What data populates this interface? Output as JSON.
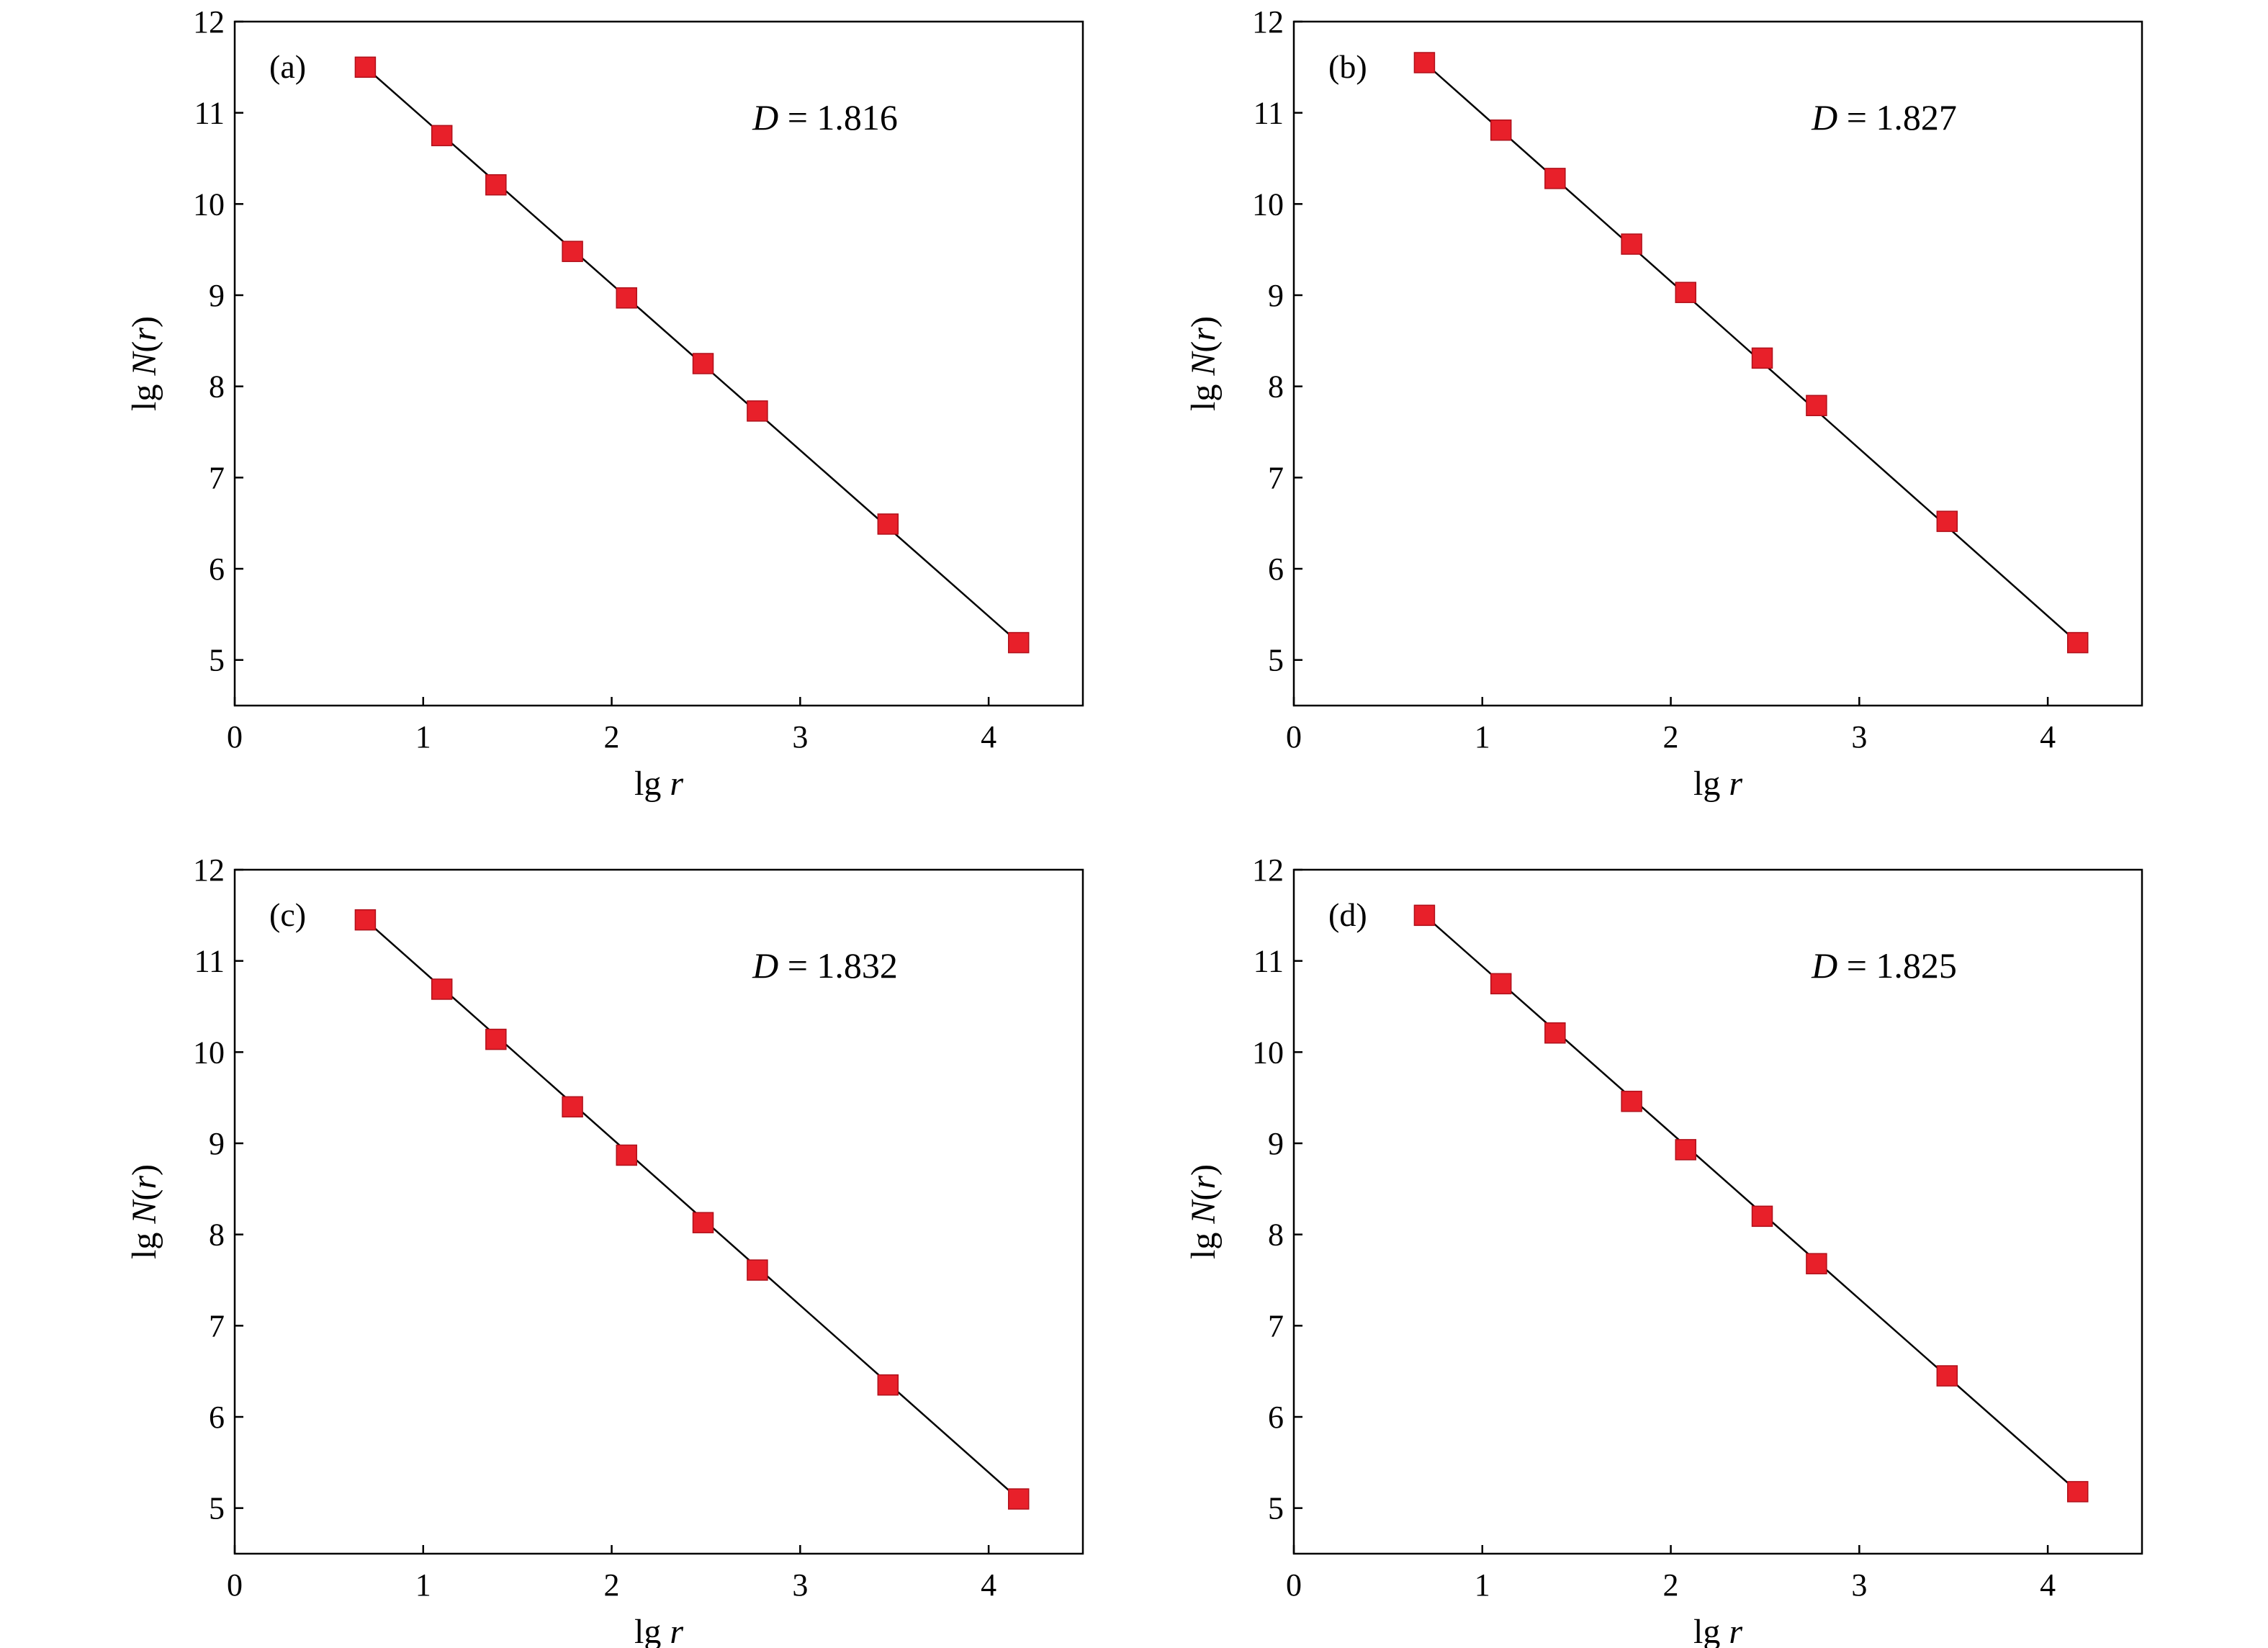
{
  "colors": {
    "marker": "#e8202a",
    "marker_edge": "#b0101a",
    "line": "#000000",
    "frame": "#000000"
  },
  "chart_data": [
    {
      "type": "scatter",
      "panel": "(a)",
      "xlabel": "lg r",
      "ylabel": "lg N(r)",
      "xlim": [
        0,
        4.5
      ],
      "ylim": [
        4.5,
        12
      ],
      "xticks": [
        "0",
        "1",
        "2",
        "3",
        "4"
      ],
      "yticks": [
        "5",
        "6",
        "7",
        "8",
        "9",
        "10",
        "11",
        "12"
      ],
      "grid": false,
      "annotation": {
        "symbol": "D",
        "text": " = 1.816"
      },
      "series": [
        {
          "x": [
            0.693,
            1.099,
            1.386,
            1.792,
            2.079,
            2.485,
            2.773,
            3.466,
            4.159
          ],
          "y": [
            11.5,
            10.75,
            10.21,
            9.48,
            8.97,
            8.25,
            7.73,
            6.49,
            5.19
          ]
        }
      ],
      "fit": {
        "x": [
          0.693,
          4.159
        ],
        "y": [
          11.5,
          5.19
        ]
      }
    },
    {
      "type": "scatter",
      "panel": "(b)",
      "xlabel": "lg r",
      "ylabel": "lg N(r)",
      "xlim": [
        0,
        4.5
      ],
      "ylim": [
        4.5,
        12
      ],
      "xticks": [
        "0",
        "1",
        "2",
        "3",
        "4"
      ],
      "yticks": [
        "5",
        "6",
        "7",
        "8",
        "9",
        "10",
        "11",
        "12"
      ],
      "grid": false,
      "annotation": {
        "symbol": "D",
        "text": " = 1.827"
      },
      "series": [
        {
          "x": [
            0.693,
            1.099,
            1.386,
            1.792,
            2.079,
            2.485,
            2.773,
            3.466,
            4.159
          ],
          "y": [
            11.55,
            10.81,
            10.28,
            9.56,
            9.03,
            8.31,
            7.79,
            6.52,
            5.19
          ]
        }
      ],
      "fit": {
        "x": [
          0.693,
          4.159
        ],
        "y": [
          11.55,
          5.19
        ]
      }
    },
    {
      "type": "scatter",
      "panel": "(c)",
      "xlabel": "lg r",
      "ylabel": "lg N(r)",
      "xlim": [
        0,
        4.5
      ],
      "ylim": [
        4.5,
        12
      ],
      "xticks": [
        "0",
        "1",
        "2",
        "3",
        "4"
      ],
      "yticks": [
        "5",
        "6",
        "7",
        "8",
        "9",
        "10",
        "11",
        "12"
      ],
      "grid": false,
      "annotation": {
        "symbol": "D",
        "text": " = 1.832"
      },
      "series": [
        {
          "x": [
            0.693,
            1.099,
            1.386,
            1.792,
            2.079,
            2.485,
            2.773,
            3.466,
            4.159
          ],
          "y": [
            11.45,
            10.69,
            10.14,
            9.4,
            8.87,
            8.13,
            7.61,
            6.35,
            5.1
          ]
        }
      ],
      "fit": {
        "x": [
          0.693,
          4.159
        ],
        "y": [
          11.45,
          5.1
        ]
      }
    },
    {
      "type": "scatter",
      "panel": "(d)",
      "xlabel": "lg r",
      "ylabel": "lg N(r)",
      "xlim": [
        0,
        4.5
      ],
      "ylim": [
        4.5,
        12
      ],
      "xticks": [
        "0",
        "1",
        "2",
        "3",
        "4"
      ],
      "yticks": [
        "5",
        "6",
        "7",
        "8",
        "9",
        "10",
        "11",
        "12"
      ],
      "grid": false,
      "annotation": {
        "symbol": "D",
        "text": " = 1.825"
      },
      "series": [
        {
          "x": [
            0.693,
            1.099,
            1.386,
            1.792,
            2.079,
            2.485,
            2.773,
            3.466,
            4.159
          ],
          "y": [
            11.5,
            10.75,
            10.21,
            9.46,
            8.93,
            8.2,
            7.68,
            6.45,
            5.18
          ]
        }
      ],
      "fit": {
        "x": [
          0.693,
          4.159
        ],
        "y": [
          11.5,
          5.18
        ]
      }
    }
  ]
}
